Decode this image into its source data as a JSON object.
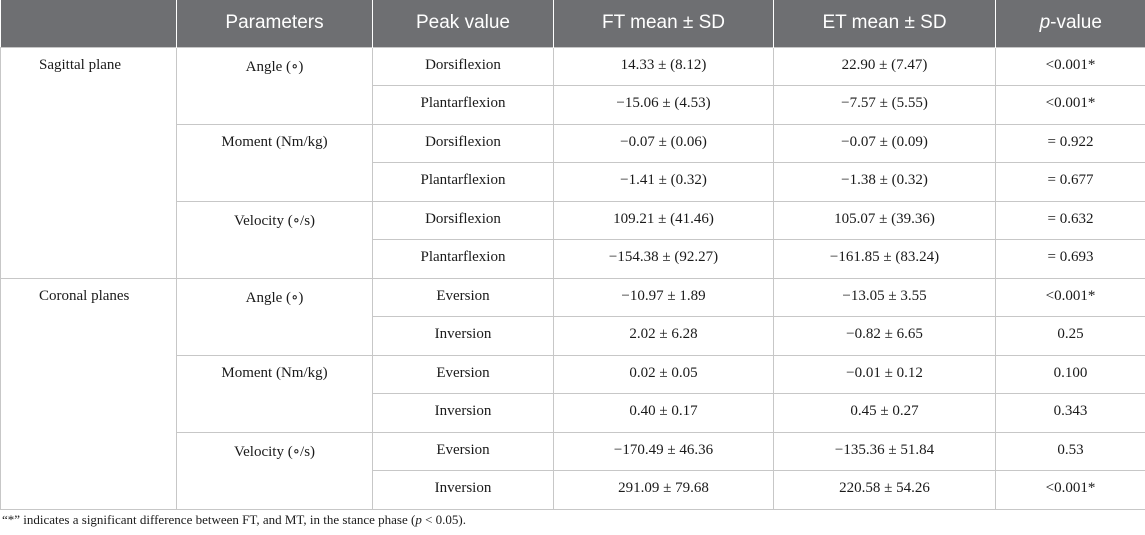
{
  "headers": {
    "parameters": "Parameters",
    "peak_value": "Peak value",
    "ft": "FT mean ± SD",
    "et": "ET mean ± SD",
    "p_italic": "p",
    "p_rest": "-value"
  },
  "groups": [
    {
      "name": "Sagittal plane",
      "params": [
        {
          "name": "Angle (∘)",
          "rows": [
            {
              "peak": "Dorsiflexion",
              "ft": "14.33 ± (8.12)",
              "et": "22.90 ± (7.47)",
              "p": "<0.001*"
            },
            {
              "peak": "Plantarflexion",
              "ft": "−15.06 ± (4.53)",
              "et": "−7.57 ± (5.55)",
              "p": "<0.001*"
            }
          ]
        },
        {
          "name": "Moment (Nm/kg)",
          "rows": [
            {
              "peak": "Dorsiflexion",
              "ft": "−0.07 ± (0.06)",
              "et": "−0.07 ± (0.09)",
              "p": "= 0.922"
            },
            {
              "peak": "Plantarflexion",
              "ft": "−1.41 ± (0.32)",
              "et": "−1.38 ± (0.32)",
              "p": "= 0.677"
            }
          ]
        },
        {
          "name": "Velocity (∘/s)",
          "rows": [
            {
              "peak": "Dorsiflexion",
              "ft": "109.21 ± (41.46)",
              "et": "105.07 ± (39.36)",
              "p": "= 0.632"
            },
            {
              "peak": "Plantarflexion",
              "ft": "−154.38 ± (92.27)",
              "et": "−161.85 ± (83.24)",
              "p": "= 0.693"
            }
          ]
        }
      ]
    },
    {
      "name": "Coronal planes",
      "params": [
        {
          "name": "Angle (∘)",
          "rows": [
            {
              "peak": "Eversion",
              "ft": "−10.97 ± 1.89",
              "et": "−13.05 ± 3.55",
              "p": "<0.001*"
            },
            {
              "peak": "Inversion",
              "ft": "2.02 ± 6.28",
              "et": "−0.82 ± 6.65",
              "p": "0.25"
            }
          ]
        },
        {
          "name": "Moment (Nm/kg)",
          "rows": [
            {
              "peak": "Eversion",
              "ft": "0.02 ± 0.05",
              "et": "−0.01 ± 0.12",
              "p": "0.100"
            },
            {
              "peak": "Inversion",
              "ft": "0.40 ± 0.17",
              "et": "0.45 ± 0.27",
              "p": "0.343"
            }
          ]
        },
        {
          "name": "Velocity (∘/s)",
          "rows": [
            {
              "peak": "Eversion",
              "ft": "−170.49 ± 46.36",
              "et": "−135.36 ± 51.84",
              "p": "0.53"
            },
            {
              "peak": "Inversion",
              "ft": "291.09 ± 79.68",
              "et": "220.58 ± 54.26",
              "p": "<0.001*"
            }
          ]
        }
      ]
    }
  ],
  "footnote": {
    "before": "“*” indicates a significant difference between FT, and MT, in the stance phase (",
    "p_italic": "p",
    "after": " < 0.05)."
  }
}
